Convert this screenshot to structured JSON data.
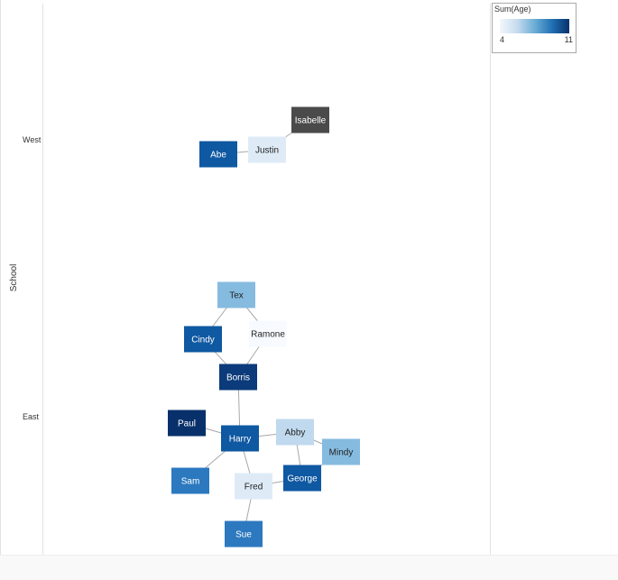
{
  "chart_data": {
    "type": "network",
    "y_axis": {
      "label": "School",
      "categories": [
        "West",
        "East"
      ]
    },
    "legend": {
      "title": "Sum(Age)",
      "min": 4,
      "max": 11,
      "colors": [
        "#f3f8fd",
        "#c6dbef",
        "#6baed6",
        "#2171b5",
        "#08306b"
      ],
      "placement": "top-right"
    },
    "nodes": [
      {
        "id": "Isabelle",
        "label": "Isabelle",
        "school": "West",
        "fill": "#4a4a4a",
        "text_color": "#ffffff"
      },
      {
        "id": "Justin",
        "label": "Justin",
        "school": "West",
        "fill": "#deebf7",
        "text_color": "#222222"
      },
      {
        "id": "Abe",
        "label": "Abe",
        "school": "West",
        "fill": "#0f58a2",
        "text_color": "#ffffff"
      },
      {
        "id": "Tex",
        "label": "Tex",
        "school": "East",
        "fill": "#86bbe0",
        "text_color": "#222222"
      },
      {
        "id": "Ramone",
        "label": "Ramone",
        "school": "East",
        "fill": "#f7fbff",
        "text_color": "#222222"
      },
      {
        "id": "Cindy",
        "label": "Cindy",
        "school": "East",
        "fill": "#0f58a2",
        "text_color": "#ffffff"
      },
      {
        "id": "Borris",
        "label": "Borris",
        "school": "East",
        "fill": "#0b3b7a",
        "text_color": "#ffffff"
      },
      {
        "id": "Paul",
        "label": "Paul",
        "school": "East",
        "fill": "#08306b",
        "text_color": "#ffffff"
      },
      {
        "id": "Harry",
        "label": "Harry",
        "school": "East",
        "fill": "#0f58a2",
        "text_color": "#ffffff"
      },
      {
        "id": "Abby",
        "label": "Abby",
        "school": "East",
        "fill": "#c0d9ee",
        "text_color": "#222222"
      },
      {
        "id": "Mindy",
        "label": "Mindy",
        "school": "East",
        "fill": "#86bbe0",
        "text_color": "#222222"
      },
      {
        "id": "George",
        "label": "George",
        "school": "East",
        "fill": "#0f58a2",
        "text_color": "#ffffff"
      },
      {
        "id": "Sam",
        "label": "Sam",
        "school": "East",
        "fill": "#2c79bf",
        "text_color": "#ffffff"
      },
      {
        "id": "Fred",
        "label": "Fred",
        "school": "East",
        "fill": "#deebf7",
        "text_color": "#222222"
      },
      {
        "id": "Sue",
        "label": "Sue",
        "school": "East",
        "fill": "#2c79bf",
        "text_color": "#ffffff"
      }
    ],
    "edges": [
      [
        "Abe",
        "Justin"
      ],
      [
        "Justin",
        "Isabelle"
      ],
      [
        "Tex",
        "Cindy"
      ],
      [
        "Tex",
        "Ramone"
      ],
      [
        "Cindy",
        "Borris"
      ],
      [
        "Ramone",
        "Borris"
      ],
      [
        "Borris",
        "Harry"
      ],
      [
        "Paul",
        "Harry"
      ],
      [
        "Harry",
        "Abby"
      ],
      [
        "Harry",
        "Sam"
      ],
      [
        "Harry",
        "Fred"
      ],
      [
        "Abby",
        "Mindy"
      ],
      [
        "Abby",
        "George"
      ],
      [
        "Mindy",
        "George"
      ],
      [
        "George",
        "Fred"
      ],
      [
        "Fred",
        "Sue"
      ]
    ]
  }
}
